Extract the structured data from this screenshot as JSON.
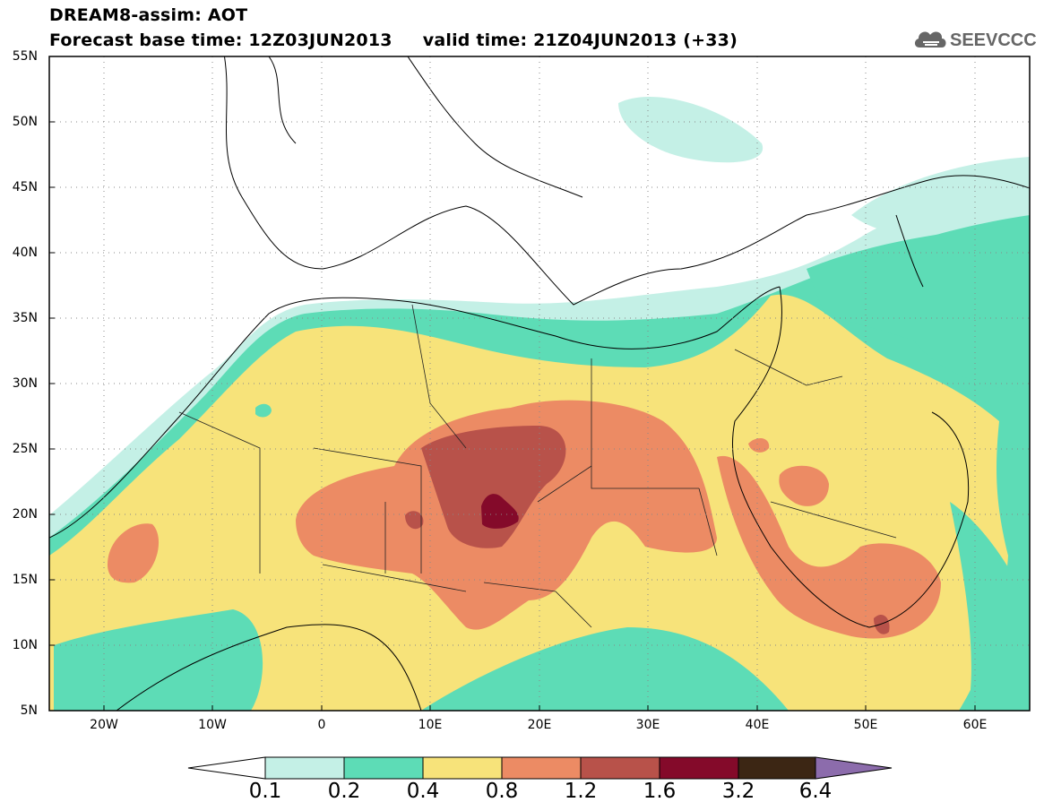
{
  "header": {
    "title_line1": "DREAM8-assim: AOT",
    "title_line2": "Forecast base time: 12Z03JUN2013     valid time: 21Z04JUN2013 (+33)",
    "logo_text": "SEEVCCC",
    "logo_icon": "cloud-icon"
  },
  "map": {
    "region": "North Africa, Middle East and Europe",
    "lon_range": [
      -25,
      65
    ],
    "lat_range": [
      5,
      55
    ],
    "grid": "dotted",
    "lat_ticks": [
      "55N",
      "50N",
      "45N",
      "40N",
      "35N",
      "30N",
      "25N",
      "20N",
      "15N",
      "10N",
      "5N"
    ],
    "lon_ticks": [
      "20W",
      "10W",
      "0",
      "10E",
      "20E",
      "30E",
      "40E",
      "50E",
      "60E"
    ]
  },
  "colorbar": {
    "labels": [
      "0.1",
      "0.2",
      "0.4",
      "0.8",
      "1.2",
      "1.6",
      "3.2",
      "6.4"
    ],
    "colors": {
      "below": "#ffffff",
      "c1": "#c4f0e6",
      "c2": "#5ddcb6",
      "c3": "#f7e37a",
      "c4": "#ec8b64",
      "c5": "#b8524a",
      "c6": "#840a2a",
      "c7": "#3c2614",
      "above": "#8c6cac"
    }
  }
}
